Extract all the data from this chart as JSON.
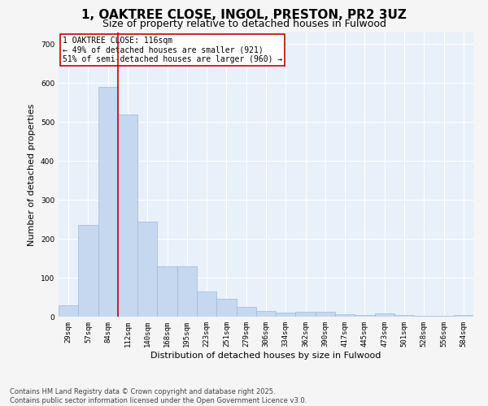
{
  "title1": "1, OAKTREE CLOSE, INGOL, PRESTON, PR2 3UZ",
  "title2": "Size of property relative to detached houses in Fulwood",
  "xlabel": "Distribution of detached houses by size in Fulwood",
  "ylabel": "Number of detached properties",
  "categories": [
    "29sqm",
    "57sqm",
    "84sqm",
    "112sqm",
    "140sqm",
    "168sqm",
    "195sqm",
    "223sqm",
    "251sqm",
    "279sqm",
    "306sqm",
    "334sqm",
    "362sqm",
    "390sqm",
    "417sqm",
    "445sqm",
    "473sqm",
    "501sqm",
    "528sqm",
    "556sqm",
    "584sqm"
  ],
  "values": [
    30,
    235,
    590,
    520,
    245,
    130,
    130,
    65,
    45,
    25,
    15,
    10,
    12,
    12,
    6,
    5,
    8,
    4,
    3,
    2,
    5
  ],
  "bar_color": "#c5d8f0",
  "bar_edge_color": "#a0b8d8",
  "vline_pos": 2.5,
  "vline_color": "#cc0000",
  "annotation_text": "1 OAKTREE CLOSE: 116sqm\n← 49% of detached houses are smaller (921)\n51% of semi-detached houses are larger (960) →",
  "annotation_box_color": "#ffffff",
  "annotation_box_edge": "#cc0000",
  "ylim": [
    0,
    730
  ],
  "yticks": [
    0,
    100,
    200,
    300,
    400,
    500,
    600,
    700
  ],
  "plot_bg_color": "#e8f0fa",
  "fig_bg_color": "#f5f5f5",
  "footer1": "Contains HM Land Registry data © Crown copyright and database right 2025.",
  "footer2": "Contains public sector information licensed under the Open Government Licence v3.0.",
  "title_fontsize": 11,
  "subtitle_fontsize": 9,
  "tick_fontsize": 6.5,
  "label_fontsize": 8,
  "footer_fontsize": 6,
  "ann_fontsize": 7
}
